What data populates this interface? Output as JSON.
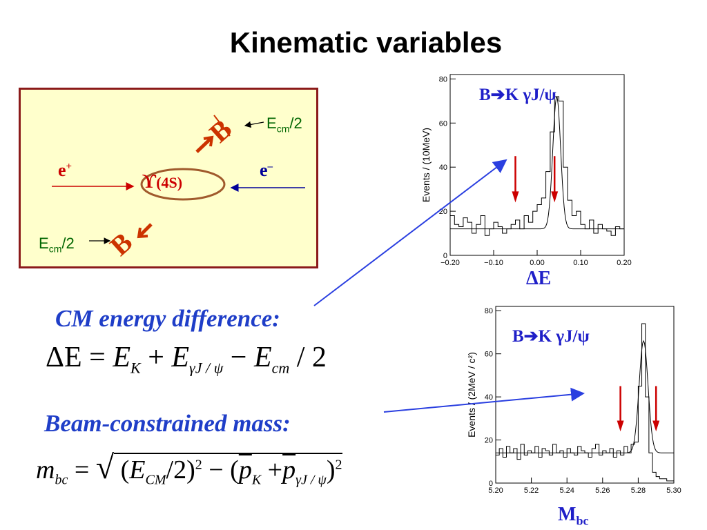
{
  "title": "Kinematic variables",
  "diagram": {
    "e_plus": "e",
    "e_plus_sup": "+",
    "e_minus": "e",
    "e_minus_sup": "–",
    "upsilon_symbol": "ϒ",
    "upsilon_state": "(4S)",
    "b_label": "B",
    "ecm_text": "E",
    "ecm_sub": "cm",
    "ecm_tail": "/2",
    "colors": {
      "box_bg": "#ffffcc",
      "box_border": "#8b1a1a",
      "b_color": "#cc3300",
      "ecm_color": "#006600",
      "electron": "#cc0000",
      "positron": "#000099"
    }
  },
  "delta_e_section": {
    "heading": "CM energy difference:",
    "formula": {
      "lhs": "ΔE",
      "eq": "=",
      "ek": "E",
      "ek_sub": "K",
      "plus": "+",
      "ej": "E",
      "ej_sub": "γJ / ψ",
      "minus": "−",
      "ecm": "E",
      "ecm_sub": "cm",
      "tail": "/ 2"
    }
  },
  "mbc_section": {
    "heading": "Beam-constrained mass:",
    "formula": {
      "lhs": "m",
      "lhs_sub": "bc",
      "eq": "=",
      "open": "(",
      "e": "E",
      "e_sub": "CM",
      "half": "2)",
      "sq": "2",
      "minus": "− (",
      "pk": "p",
      "pk_sub": "K",
      "plus": "+",
      "pj": "p",
      "pj_sub": "γJ / ψ",
      "close": ")",
      "sq2": "2"
    }
  },
  "plot_de": {
    "title": "B➔K γJ/ψ",
    "variable": "ΔE",
    "ylabel": "Events / (10MeV)",
    "xticks": [
      "−0.20",
      "−0.10",
      "0.00",
      "0.10",
      "0.20"
    ],
    "yticks": [
      "0",
      "20",
      "40",
      "60",
      "80"
    ]
  },
  "plot_mbc": {
    "title": "B➔K γJ/ψ",
    "variable": "M",
    "variable_sub": "bc",
    "ylabel": "Events / (2MeV / c²)",
    "xticks": [
      "5.20",
      "5.22",
      "5.24",
      "5.26",
      "5.28",
      "5.30"
    ],
    "yticks": [
      "0",
      "20",
      "40",
      "60",
      "80"
    ]
  },
  "chart_data": [
    {
      "type": "bar",
      "xlabel": "",
      "ylabel": "Events / (10MeV)",
      "xlim": [
        -0.2,
        0.2
      ],
      "ylim": [
        0,
        82
      ],
      "bin_width": 0.01,
      "values": [
        18,
        14,
        13,
        17,
        15,
        10,
        14,
        18,
        9,
        12,
        15,
        13,
        10,
        12,
        14,
        16,
        12,
        18,
        15,
        20,
        23,
        26,
        38,
        56,
        72,
        70,
        40,
        25,
        18,
        20,
        14,
        12,
        16,
        10,
        14,
        12,
        11,
        9,
        13,
        12
      ],
      "fit_baseline": 12,
      "fit_peak": 72,
      "signal_window": [
        -0.05,
        0.04
      ]
    },
    {
      "type": "bar",
      "xlabel": "",
      "ylabel": "Events / (2MeV / c²)",
      "xlim": [
        5.2,
        5.3
      ],
      "ylim": [
        0,
        82
      ],
      "bin_width": 0.002,
      "values": [
        13,
        16,
        12,
        17,
        14,
        16,
        11,
        18,
        13,
        15,
        14,
        17,
        12,
        16,
        15,
        13,
        18,
        14,
        15,
        12,
        16,
        14,
        13,
        17,
        15,
        14,
        12,
        16,
        18,
        13,
        15,
        14,
        16,
        12,
        15,
        13,
        17,
        14,
        18,
        19,
        45,
        74,
        40,
        14,
        5,
        3,
        2,
        2,
        1,
        1
      ],
      "fit_baseline": 14,
      "fit_peak": 66,
      "signal_window": [
        5.27,
        5.29
      ]
    }
  ]
}
